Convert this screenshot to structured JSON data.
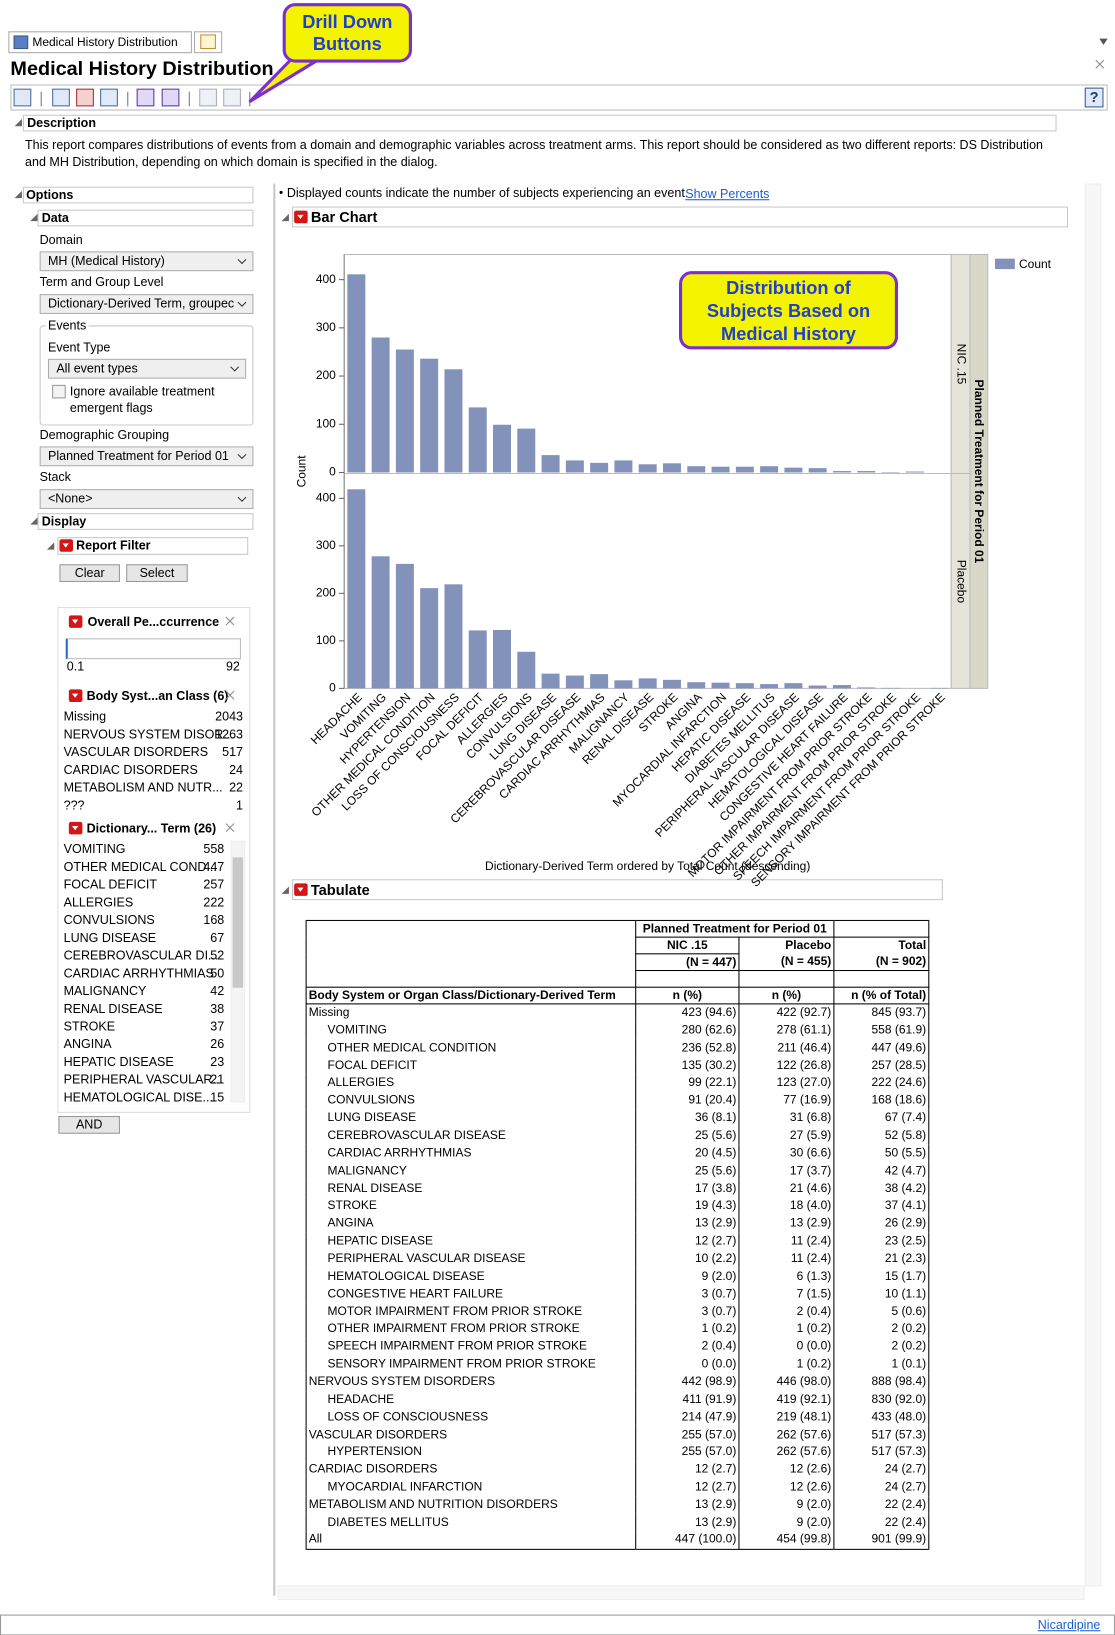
{
  "tabs": [
    "Medical History Distribution"
  ],
  "window": {
    "title": "Medical History Distribution"
  },
  "toolbar": {
    "help": "?"
  },
  "callouts": [
    "Drill Down Buttons",
    "Distribution of Subjects Based on Medical History"
  ],
  "description": {
    "header": "Description",
    "text": "This report compares distributions of events from a domain and demographic variables across treatment arms. This report should be considered as two different reports: DS Distribution and MH Distribution, depending on which domain is specified in the dialog."
  },
  "options": {
    "header": "Options",
    "data": {
      "header": "Data",
      "domain_label": "Domain",
      "domain": "MH (Medical History)",
      "term_label": "Term and Group Level",
      "term": "Dictionary-Derived Term, groupec",
      "events": {
        "header": "Events",
        "event_type_label": "Event Type",
        "event_type": "All event types",
        "checkbox": "Ignore available treatment emergent flags"
      },
      "grouping_label": "Demographic Grouping",
      "grouping": "Planned Treatment for Period 01",
      "stack_label": "Stack",
      "stack": "<None>"
    },
    "display": {
      "header": "Display",
      "report_filter": {
        "header": "Report Filter",
        "buttons": [
          "Clear",
          "Select"
        ],
        "and": "AND",
        "overall": {
          "title": "Overall Pe...ccurrence",
          "range": [
            0.1,
            92
          ]
        },
        "lists": [
          {
            "title": "Body Syst...an Class (6)",
            "items": [
              {
                "label": "Missing",
                "count": 2043
              },
              {
                "label": "NERVOUS SYSTEM DISOR...",
                "count": 1263
              },
              {
                "label": "VASCULAR DISORDERS",
                "count": 517
              },
              {
                "label": "CARDIAC DISORDERS",
                "count": 24
              },
              {
                "label": "METABOLISM AND NUTR...",
                "count": 22
              },
              {
                "label": "???",
                "count": 1
              }
            ]
          },
          {
            "title": "Dictionary... Term (26)",
            "items": [
              {
                "label": "VOMITING",
                "count": 558
              },
              {
                "label": "OTHER MEDICAL COND...",
                "count": 447
              },
              {
                "label": "FOCAL DEFICIT",
                "count": 257
              },
              {
                "label": "ALLERGIES",
                "count": 222
              },
              {
                "label": "CONVULSIONS",
                "count": 168
              },
              {
                "label": "LUNG DISEASE",
                "count": 67
              },
              {
                "label": "CEREBROVASCULAR DI...",
                "count": 52
              },
              {
                "label": "CARDIAC ARRHYTHMIAS",
                "count": 50
              },
              {
                "label": "MALIGNANCY",
                "count": 42
              },
              {
                "label": "RENAL DISEASE",
                "count": 38
              },
              {
                "label": "STROKE",
                "count": 37
              },
              {
                "label": "ANGINA",
                "count": 26
              },
              {
                "label": "HEPATIC DISEASE",
                "count": 23
              },
              {
                "label": "PERIPHERAL VASCULAR...",
                "count": 21
              },
              {
                "label": "HEMATOLOGICAL DISE...",
                "count": 15
              }
            ]
          }
        ]
      }
    }
  },
  "report": {
    "note": "Displayed counts indicate the number of subjects experiencing an event.",
    "link": "Show Percents",
    "bar_chart_header": "Bar Chart",
    "tabulate_header": "Tabulate"
  },
  "chart_data": {
    "type": "bar",
    "categories": [
      "HEADACHE",
      "VOMITING",
      "HYPERTENSION",
      "OTHER MEDICAL CONDITION",
      "LOSS OF CONSCIOUSNESS",
      "FOCAL DEFICIT",
      "ALLERGIES",
      "CONVULSIONS",
      "LUNG DISEASE",
      "CEREBROVASCULAR DISEASE",
      "CARDIAC ARRHYTHMIAS",
      "MALIGNANCY",
      "RENAL DISEASE",
      "STROKE",
      "ANGINA",
      "MYOCARDIAL INFARCTION",
      "HEPATIC DISEASE",
      "DIABETES MELLITUS",
      "PERIPHERAL VASCULAR DISEASE",
      "HEMATOLOGICAL DISEASE",
      "CONGESTIVE HEART FAILURE",
      "MOTOR IMPAIRMENT FROM PRIOR STROKE",
      "OTHER IMPAIRMENT FROM PRIOR STROKE",
      "SPEECH IMPAIRMENT FROM PRIOR STROKE",
      "SENSORY IMPAIRMENT FROM PRIOR STROKE"
    ],
    "ylabel": "Count",
    "xlabel": "Dictionary-Derived Term ordered by Total Count (descending)",
    "facet_label": "Planned Treatment for Period 01",
    "legend": [
      "Count"
    ],
    "color": "#8392ba",
    "series": [
      {
        "name": "NIC .15",
        "values": [
          411,
          280,
          255,
          236,
          214,
          135,
          99,
          91,
          36,
          25,
          20,
          25,
          17,
          19,
          13,
          12,
          12,
          13,
          10,
          9,
          3,
          3,
          1,
          2,
          0
        ],
        "ylim": [
          0,
          450
        ],
        "yticks": [
          0,
          100,
          200,
          300,
          400
        ]
      },
      {
        "name": "Placebo",
        "values": [
          419,
          278,
          262,
          211,
          219,
          122,
          123,
          77,
          31,
          27,
          30,
          17,
          21,
          18,
          13,
          12,
          11,
          9,
          11,
          6,
          7,
          2,
          1,
          0,
          1
        ],
        "ylim": [
          0,
          450
        ],
        "yticks": [
          0,
          100,
          200,
          300,
          400
        ]
      }
    ]
  },
  "table": {
    "span_header": "Planned Treatment for Period 01",
    "columns": [
      "NIC .15",
      "Placebo",
      "Total"
    ],
    "ns": [
      "(N = 447)",
      "(N = 455)",
      "(N = 902)"
    ],
    "row_header": "Body System or Organ Class/Dictionary-Derived Term",
    "stat_headers": [
      "n (%)",
      "n (%)",
      "n (% of Total)"
    ],
    "groups": [
      {
        "row": [
          "Missing",
          "423 (94.6)",
          "422 (92.7)",
          "845 (93.7)"
        ],
        "terms": [
          [
            "VOMITING",
            "280 (62.6)",
            "278 (61.1)",
            "558 (61.9)"
          ],
          [
            "OTHER MEDICAL CONDITION",
            "236 (52.8)",
            "211 (46.4)",
            "447 (49.6)"
          ],
          [
            "FOCAL DEFICIT",
            "135 (30.2)",
            "122 (26.8)",
            "257 (28.5)"
          ],
          [
            "ALLERGIES",
            "99 (22.1)",
            "123 (27.0)",
            "222 (24.6)"
          ],
          [
            "CONVULSIONS",
            "91 (20.4)",
            "77 (16.9)",
            "168 (18.6)"
          ],
          [
            "LUNG DISEASE",
            "36 (8.1)",
            "31 (6.8)",
            "67 (7.4)"
          ],
          [
            "CEREBROVASCULAR DISEASE",
            "25 (5.6)",
            "27 (5.9)",
            "52 (5.8)"
          ],
          [
            "CARDIAC ARRHYTHMIAS",
            "20 (4.5)",
            "30 (6.6)",
            "50 (5.5)"
          ],
          [
            "MALIGNANCY",
            "25 (5.6)",
            "17 (3.7)",
            "42 (4.7)"
          ],
          [
            "RENAL DISEASE",
            "17 (3.8)",
            "21 (4.6)",
            "38 (4.2)"
          ],
          [
            "STROKE",
            "19 (4.3)",
            "18 (4.0)",
            "37 (4.1)"
          ],
          [
            "ANGINA",
            "13 (2.9)",
            "13 (2.9)",
            "26 (2.9)"
          ],
          [
            "HEPATIC DISEASE",
            "12 (2.7)",
            "11 (2.4)",
            "23 (2.5)"
          ],
          [
            "PERIPHERAL VASCULAR DISEASE",
            "10 (2.2)",
            "11 (2.4)",
            "21 (2.3)"
          ],
          [
            "HEMATOLOGICAL DISEASE",
            "9 (2.0)",
            "6 (1.3)",
            "15 (1.7)"
          ],
          [
            "CONGESTIVE HEART FAILURE",
            "3 (0.7)",
            "7 (1.5)",
            "10 (1.1)"
          ],
          [
            "MOTOR IMPAIRMENT FROM PRIOR STROKE",
            "3 (0.7)",
            "2 (0.4)",
            "5 (0.6)"
          ],
          [
            "OTHER IMPAIRMENT FROM PRIOR STROKE",
            "1 (0.2)",
            "1 (0.2)",
            "2 (0.2)"
          ],
          [
            "SPEECH IMPAIRMENT FROM PRIOR STROKE",
            "2 (0.4)",
            "0 (0.0)",
            "2 (0.2)"
          ],
          [
            "SENSORY IMPAIRMENT FROM PRIOR STROKE",
            "0 (0.0)",
            "1 (0.2)",
            "1 (0.1)"
          ]
        ]
      },
      {
        "row": [
          "NERVOUS SYSTEM DISORDERS",
          "442 (98.9)",
          "446 (98.0)",
          "888 (98.4)"
        ],
        "terms": [
          [
            "HEADACHE",
            "411 (91.9)",
            "419 (92.1)",
            "830 (92.0)"
          ],
          [
            "LOSS OF CONSCIOUSNESS",
            "214 (47.9)",
            "219 (48.1)",
            "433 (48.0)"
          ]
        ]
      },
      {
        "row": [
          "VASCULAR DISORDERS",
          "255 (57.0)",
          "262 (57.6)",
          "517 (57.3)"
        ],
        "terms": [
          [
            "HYPERTENSION",
            "255 (57.0)",
            "262 (57.6)",
            "517 (57.3)"
          ]
        ]
      },
      {
        "row": [
          "CARDIAC DISORDERS",
          "12 (2.7)",
          "12 (2.6)",
          "24 (2.7)"
        ],
        "terms": [
          [
            "MYOCARDIAL INFARCTION",
            "12 (2.7)",
            "12 (2.6)",
            "24 (2.7)"
          ]
        ]
      },
      {
        "row": [
          "METABOLISM AND NUTRITION DISORDERS",
          "13 (2.9)",
          "9 (2.0)",
          "22 (2.4)"
        ],
        "terms": [
          [
            "DIABETES MELLITUS",
            "13 (2.9)",
            "9 (2.0)",
            "22 (2.4)"
          ]
        ]
      }
    ],
    "all": [
      "All",
      "447 (100.0)",
      "454 (99.8)",
      "901 (99.9)"
    ]
  },
  "footer": {
    "link": "Nicardipine"
  }
}
